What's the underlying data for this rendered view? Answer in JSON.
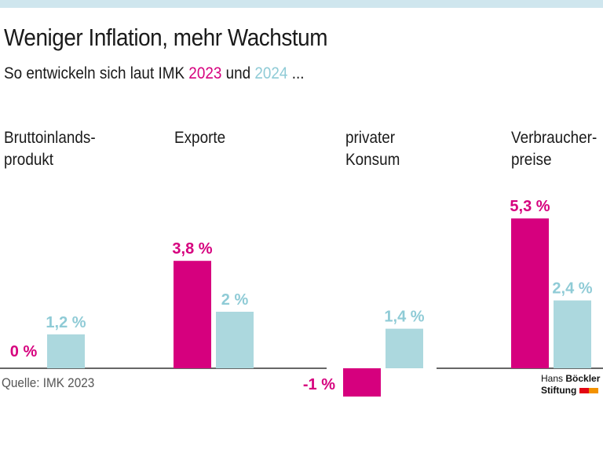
{
  "title": "Weniger Inflation, mehr Wachstum",
  "subtitle": {
    "prefix": "So entwickeln sich laut IMK ",
    "year1": "2023",
    "mid": " und ",
    "year2": "2024",
    "suffix": " ..."
  },
  "source": "Quelle: IMK 2023",
  "logo": {
    "line1a": "Hans ",
    "line1b": "Böckler",
    "line2": "Stiftung"
  },
  "colors": {
    "2023": "#d6007e",
    "2024": "#acd8de",
    "axis": "#666666"
  },
  "chart_data": {
    "type": "bar",
    "categories": [
      "Bruttoinlands-\nprodukt",
      "Exporte",
      "privater\nKonsum",
      "Verbraucher-\npreise"
    ],
    "series": [
      {
        "name": "2023",
        "values": [
          0,
          3.8,
          -1,
          5.3
        ],
        "labels": [
          "0 %",
          "3,8 %",
          "-1 %",
          "5,3 %"
        ]
      },
      {
        "name": "2024",
        "values": [
          1.2,
          2,
          1.4,
          2.4
        ],
        "labels": [
          "1,2 %",
          "2 %",
          "1,4 %",
          "2,4 %"
        ]
      }
    ],
    "unit": "%"
  }
}
